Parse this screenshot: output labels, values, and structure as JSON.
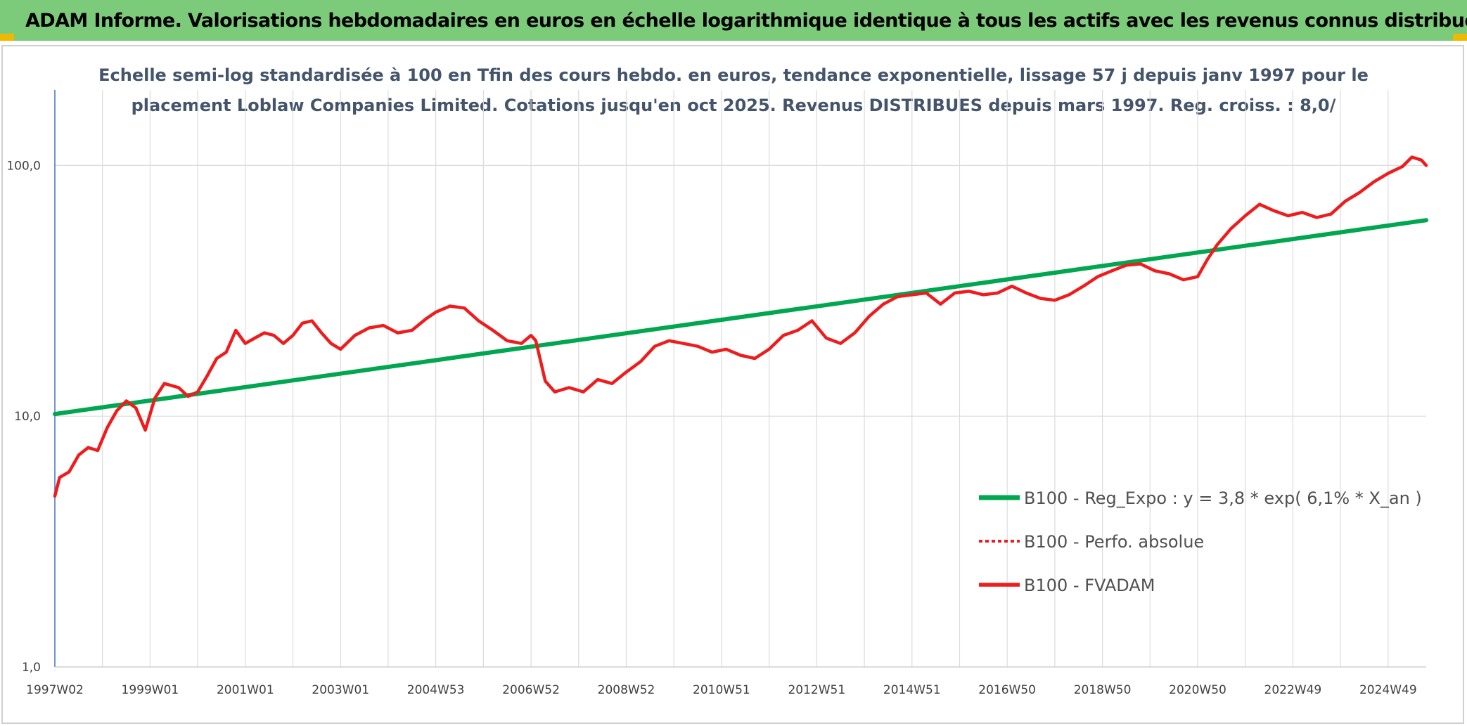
{
  "header": {
    "title": "ADAM Informe. Valorisations hebdomadaires en euros en échelle logarithmique identique à tous les actifs avec les revenus connus distribués"
  },
  "colors": {
    "banner": "#7ccb7a",
    "corner_accent": "#f1b800",
    "regression": "#00a650",
    "fvadam": "#ee1c1c",
    "perfo": "#ee1c1c",
    "subtitle": "#44546a"
  },
  "chart_data": {
    "type": "line",
    "scale": "log",
    "title_lines": [
      "Echelle semi-log standardisée à 100 en Tfin des cours hebdo. en euros, tendance exponentielle, lissage 57 j depuis janv 1997 pour le",
      "placement Loblaw Companies Limited. Cotations jusqu'en oct 2025.  Revenus DISTRIBUES depuis mars 1997. Reg. croiss. : 8,0/"
    ],
    "x_range": [
      1997.0,
      2025.8
    ],
    "y_range": [
      1,
      200
    ],
    "y_ticks": [
      {
        "value": 1,
        "label": "1,0"
      },
      {
        "value": 10,
        "label": "10,0"
      },
      {
        "value": 100,
        "label": "100,0"
      }
    ],
    "x_ticks": [
      {
        "value": 1997.0,
        "label": "1997W02"
      },
      {
        "value": 1999.0,
        "label": "1999W01"
      },
      {
        "value": 2001.0,
        "label": "2001W01"
      },
      {
        "value": 2003.0,
        "label": "2003W01"
      },
      {
        "value": 2005.0,
        "label": "2004W53"
      },
      {
        "value": 2007.0,
        "label": "2006W52"
      },
      {
        "value": 2009.0,
        "label": "2008W52"
      },
      {
        "value": 2011.0,
        "label": "2010W51"
      },
      {
        "value": 2013.0,
        "label": "2012W51"
      },
      {
        "value": 2015.0,
        "label": "2014W51"
      },
      {
        "value": 2017.0,
        "label": "2016W50"
      },
      {
        "value": 2019.0,
        "label": "2018W50"
      },
      {
        "value": 2021.0,
        "label": "2020W50"
      },
      {
        "value": 2023.0,
        "label": "2022W49"
      },
      {
        "value": 2025.0,
        "label": "2024W49"
      }
    ],
    "gridlines_x": [
      1997.0,
      1998.0,
      1999.0,
      2000.0,
      2001.0,
      2002.0,
      2003.0,
      2004.0,
      2005.0,
      2006.0,
      2007.0,
      2008.0,
      2009.0,
      2010.0,
      2011.0,
      2012.0,
      2013.0,
      2014.0,
      2015.0,
      2016.0,
      2017.0,
      2018.0,
      2019.0,
      2020.0,
      2021.0,
      2022.0,
      2023.0,
      2024.0,
      2025.0
    ],
    "series": [
      {
        "name": "B100 - Reg_Expo : y = 3,8 * exp( 6,1% *  X_an )",
        "style": "regression",
        "x": [
          1997.0,
          2025.8
        ],
        "y": [
          10.2,
          60.5
        ]
      },
      {
        "name": "B100 - Perfo. absolue",
        "style": "dotted",
        "x": [],
        "y": []
      },
      {
        "name": "B100 - FVADAM",
        "style": "solid",
        "x": [
          1997.0,
          1997.1,
          1997.3,
          1997.5,
          1997.7,
          1997.9,
          1998.1,
          1998.3,
          1998.5,
          1998.7,
          1998.9,
          1999.1,
          1999.3,
          1999.6,
          1999.8,
          2000.0,
          2000.2,
          2000.4,
          2000.6,
          2000.8,
          2001.0,
          2001.2,
          2001.4,
          2001.6,
          2001.8,
          2002.0,
          2002.2,
          2002.4,
          2002.6,
          2002.8,
          2003.0,
          2003.3,
          2003.6,
          2003.9,
          2004.2,
          2004.5,
          2004.8,
          2005.0,
          2005.3,
          2005.6,
          2005.9,
          2006.2,
          2006.5,
          2006.8,
          2007.0,
          2007.1,
          2007.3,
          2007.5,
          2007.8,
          2008.1,
          2008.4,
          2008.7,
          2009.0,
          2009.3,
          2009.6,
          2009.9,
          2010.2,
          2010.5,
          2010.8,
          2011.1,
          2011.4,
          2011.7,
          2012.0,
          2012.3,
          2012.6,
          2012.9,
          2013.2,
          2013.5,
          2013.8,
          2014.1,
          2014.4,
          2014.7,
          2015.0,
          2015.3,
          2015.6,
          2015.9,
          2016.2,
          2016.5,
          2016.8,
          2017.1,
          2017.4,
          2017.7,
          2018.0,
          2018.3,
          2018.6,
          2018.9,
          2019.2,
          2019.5,
          2019.8,
          2020.1,
          2020.4,
          2020.7,
          2021.0,
          2021.2,
          2021.4,
          2021.7,
          2022.0,
          2022.3,
          2022.6,
          2022.9,
          2023.2,
          2023.5,
          2023.8,
          2024.1,
          2024.4,
          2024.7,
          2025.0,
          2025.3,
          2025.5,
          2025.7,
          2025.8
        ],
        "y": [
          4.8,
          5.7,
          6.0,
          7.0,
          7.5,
          7.3,
          9.0,
          10.5,
          11.5,
          10.8,
          8.8,
          11.8,
          13.5,
          13.0,
          12.0,
          12.5,
          14.5,
          17.0,
          18.0,
          22.0,
          19.5,
          20.5,
          21.5,
          21.0,
          19.5,
          21.0,
          23.5,
          24.0,
          21.5,
          19.5,
          18.5,
          21.0,
          22.5,
          23.0,
          21.5,
          22.0,
          24.5,
          26.0,
          27.5,
          27.0,
          24.0,
          22.0,
          20.0,
          19.5,
          21.0,
          20.0,
          13.8,
          12.5,
          13.0,
          12.5,
          14.0,
          13.5,
          15.0,
          16.5,
          19.0,
          20.0,
          19.5,
          19.0,
          18.0,
          18.5,
          17.5,
          17.0,
          18.5,
          21.0,
          22.0,
          24.0,
          20.5,
          19.5,
          21.5,
          25.0,
          28.0,
          30.0,
          30.5,
          31.0,
          28.0,
          31.0,
          31.5,
          30.5,
          31.0,
          33.0,
          31.0,
          29.5,
          29.0,
          30.5,
          33.0,
          36.0,
          38.0,
          40.0,
          40.5,
          38.0,
          37.0,
          35.0,
          36.0,
          42.0,
          48.0,
          56.0,
          63.0,
          70.0,
          66.0,
          63.0,
          65.0,
          62.0,
          64.0,
          72.0,
          78.0,
          86.0,
          93.0,
          99.0,
          108.0,
          105.0,
          100.0
        ]
      }
    ]
  }
}
